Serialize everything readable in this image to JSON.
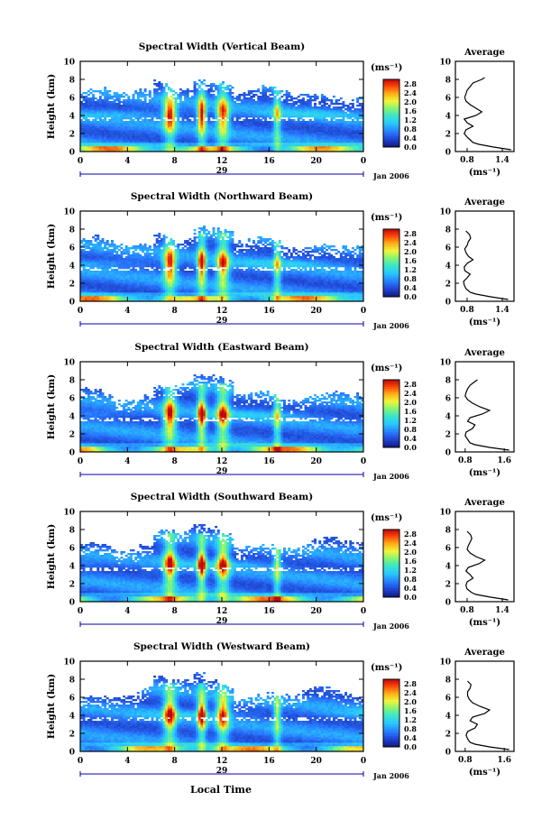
{
  "figure": {
    "x_axis_title": "Local Time",
    "heatmap_ylabel": "Height (km)",
    "colorbar_unit": "(ms⁻¹)",
    "avg_title": "Average",
    "avg_xlabel": "(ms⁻¹)",
    "date_label": "Jan 2006"
  },
  "chart_data": [
    {
      "type": "heatmap",
      "title": "Spectral Width (Vertical Beam)",
      "ylabel": "Height (km)",
      "x_ticks": [
        "0",
        "4",
        "8",
        "12",
        "16",
        "20",
        "0"
      ],
      "y_ticks": [
        "0",
        "2",
        "4",
        "6",
        "8",
        "10"
      ],
      "xlim": [
        0,
        24
      ],
      "ylim": [
        0,
        10
      ],
      "day_label": "29",
      "date_label": "Jan 2006",
      "colorbar": {
        "label": "(ms⁻¹)",
        "ticks": [
          "0.0",
          "0.4",
          "0.8",
          "1.2",
          "1.6",
          "2.0",
          "2.4",
          "2.8"
        ],
        "range": [
          0,
          3.0
        ]
      },
      "average_profile": {
        "title": "Average",
        "xlabel": "(ms⁻¹)",
        "xticks": [
          "0.8",
          "1.4"
        ],
        "xlim": [
          0.6,
          1.6
        ],
        "ylim": [
          0,
          10
        ],
        "yticks": [
          "0",
          "2",
          "4",
          "6",
          "8",
          "10"
        ],
        "height": [
          0.2,
          0.5,
          0.8,
          1.0,
          1.3,
          1.6,
          2.0,
          2.4,
          2.8,
          3.2,
          3.6,
          4.0,
          4.4,
          4.8,
          5.2,
          5.6,
          6.0,
          6.4,
          6.8,
          7.2,
          7.6,
          8.0,
          8.2
        ],
        "width": [
          1.55,
          1.25,
          1.0,
          0.9,
          0.85,
          0.8,
          0.75,
          0.78,
          0.9,
          0.8,
          0.75,
          0.95,
          1.05,
          0.95,
          0.85,
          0.78,
          0.76,
          0.78,
          0.8,
          0.85,
          0.9,
          1.05,
          1.1
        ]
      }
    },
    {
      "type": "heatmap",
      "title": "Spectral Width (Northward Beam)",
      "ylabel": "Height (km)",
      "x_ticks": [
        "0",
        "4",
        "8",
        "12",
        "16",
        "20",
        "0"
      ],
      "y_ticks": [
        "0",
        "2",
        "4",
        "6",
        "8",
        "10"
      ],
      "xlim": [
        0,
        24
      ],
      "ylim": [
        0,
        10
      ],
      "day_label": "29",
      "date_label": "Jan 2006",
      "colorbar": {
        "label": "(ms⁻¹)",
        "ticks": [
          "0.0",
          "0.4",
          "0.8",
          "1.2",
          "1.6",
          "2.0",
          "2.4",
          "2.8"
        ],
        "range": [
          0,
          3.0
        ]
      },
      "average_profile": {
        "title": "Average",
        "xlabel": "(ms⁻¹)",
        "xticks": [
          "0.8",
          "1.4"
        ],
        "xlim": [
          0.6,
          1.6
        ],
        "ylim": [
          0,
          10
        ],
        "yticks": [
          "0",
          "2",
          "4",
          "6",
          "8",
          "10"
        ],
        "height": [
          0.2,
          0.5,
          0.8,
          1.0,
          1.4,
          1.8,
          2.2,
          2.6,
          3.0,
          3.4,
          3.8,
          4.2,
          4.6,
          5.0,
          5.4,
          5.8,
          6.2,
          6.6,
          7.0,
          7.4,
          7.8
        ],
        "width": [
          1.5,
          1.2,
          0.95,
          0.85,
          0.78,
          0.75,
          0.74,
          0.8,
          0.85,
          0.76,
          0.75,
          0.8,
          0.9,
          0.82,
          0.78,
          0.76,
          0.8,
          0.82,
          0.86,
          0.84,
          0.78
        ]
      }
    },
    {
      "type": "heatmap",
      "title": "Spectral Width (Eastward Beam)",
      "ylabel": "Height (km)",
      "x_ticks": [
        "0",
        "4",
        "8",
        "12",
        "16",
        "20",
        "0"
      ],
      "y_ticks": [
        "0",
        "2",
        "4",
        "6",
        "8",
        "10"
      ],
      "xlim": [
        0,
        24
      ],
      "ylim": [
        0,
        10
      ],
      "day_label": "29",
      "date_label": "Jan 2006",
      "colorbar": {
        "label": "(ms⁻¹)",
        "ticks": [
          "0.0",
          "0.4",
          "0.8",
          "1.2",
          "1.6",
          "2.0",
          "2.4",
          "2.8"
        ],
        "range": [
          0,
          3.0
        ]
      },
      "average_profile": {
        "title": "Average",
        "xlabel": "(ms⁻¹)",
        "xticks": [
          "0.8",
          "1.6"
        ],
        "xlim": [
          0.6,
          1.8
        ],
        "ylim": [
          0,
          10
        ],
        "yticks": [
          "0",
          "2",
          "4",
          "6",
          "8",
          "10"
        ],
        "height": [
          0.2,
          0.5,
          0.8,
          1.0,
          1.4,
          1.8,
          2.2,
          2.6,
          3.0,
          3.4,
          3.8,
          4.2,
          4.6,
          5.0,
          5.4,
          5.8,
          6.2,
          6.6,
          7.0,
          7.4,
          7.8,
          8.0
        ],
        "width": [
          1.7,
          1.3,
          1.0,
          0.9,
          0.85,
          0.8,
          0.82,
          0.95,
          1.0,
          0.85,
          0.9,
          1.15,
          1.3,
          1.1,
          0.95,
          0.85,
          0.8,
          0.82,
          0.85,
          0.9,
          1.0,
          1.05
        ]
      }
    },
    {
      "type": "heatmap",
      "title": "Spectral Width (Southward Beam)",
      "ylabel": "Height (km)",
      "x_ticks": [
        "0",
        "4",
        "8",
        "12",
        "16",
        "20",
        "0"
      ],
      "y_ticks": [
        "0",
        "2",
        "4",
        "6",
        "8",
        "10"
      ],
      "xlim": [
        0,
        24
      ],
      "ylim": [
        0,
        10
      ],
      "day_label": "29",
      "date_label": "Jan 2006",
      "colorbar": {
        "label": "(ms⁻¹)",
        "ticks": [
          "0.0",
          "0.4",
          "0.8",
          "1.2",
          "1.6",
          "2.0",
          "2.4",
          "2.8"
        ],
        "range": [
          0,
          3.0
        ]
      },
      "average_profile": {
        "title": "Average",
        "xlabel": "(ms⁻¹)",
        "xticks": [
          "0.8",
          "1.4"
        ],
        "xlim": [
          0.6,
          1.6
        ],
        "ylim": [
          0,
          10
        ],
        "yticks": [
          "0",
          "2",
          "4",
          "6",
          "8",
          "10"
        ],
        "height": [
          0.2,
          0.5,
          0.8,
          1.0,
          1.4,
          1.8,
          2.2,
          2.6,
          3.0,
          3.4,
          3.8,
          4.2,
          4.6,
          5.0,
          5.4,
          5.8,
          6.2,
          6.6,
          7.0,
          7.4,
          7.8
        ],
        "width": [
          1.5,
          1.2,
          0.95,
          0.88,
          0.8,
          0.78,
          0.8,
          0.9,
          0.85,
          0.78,
          0.82,
          1.0,
          1.1,
          0.95,
          0.85,
          0.8,
          0.82,
          0.85,
          0.88,
          0.86,
          0.8
        ]
      }
    },
    {
      "type": "heatmap",
      "title": "Spectral Width (Westward Beam)",
      "ylabel": "Height (km)",
      "x_ticks": [
        "0",
        "4",
        "8",
        "12",
        "16",
        "20",
        "0"
      ],
      "y_ticks": [
        "0",
        "2",
        "4",
        "6",
        "8",
        "10"
      ],
      "xlim": [
        0,
        24
      ],
      "ylim": [
        0,
        10
      ],
      "day_label": "29",
      "date_label": "Jan 2006",
      "colorbar": {
        "label": "(ms⁻¹)",
        "ticks": [
          "0.0",
          "0.4",
          "0.8",
          "1.2",
          "1.6",
          "2.0",
          "2.4",
          "2.8"
        ],
        "range": [
          0,
          3.0
        ]
      },
      "average_profile": {
        "title": "Average",
        "xlabel": "(ms⁻¹)",
        "xticks": [
          "0.8",
          "1.6"
        ],
        "xlim": [
          0.6,
          1.8
        ],
        "ylim": [
          0,
          10
        ],
        "yticks": [
          "0",
          "2",
          "4",
          "6",
          "8",
          "10"
        ],
        "height": [
          0.2,
          0.5,
          0.8,
          1.0,
          1.4,
          1.8,
          2.2,
          2.6,
          3.0,
          3.4,
          3.8,
          4.2,
          4.6,
          5.0,
          5.4,
          5.8,
          6.2,
          6.6,
          7.0,
          7.4,
          7.8
        ],
        "width": [
          1.7,
          1.3,
          1.0,
          0.9,
          0.85,
          0.82,
          0.85,
          1.0,
          1.05,
          0.9,
          0.95,
          1.2,
          1.3,
          1.1,
          0.95,
          0.88,
          0.85,
          0.85,
          0.9,
          0.92,
          0.85
        ]
      }
    }
  ]
}
